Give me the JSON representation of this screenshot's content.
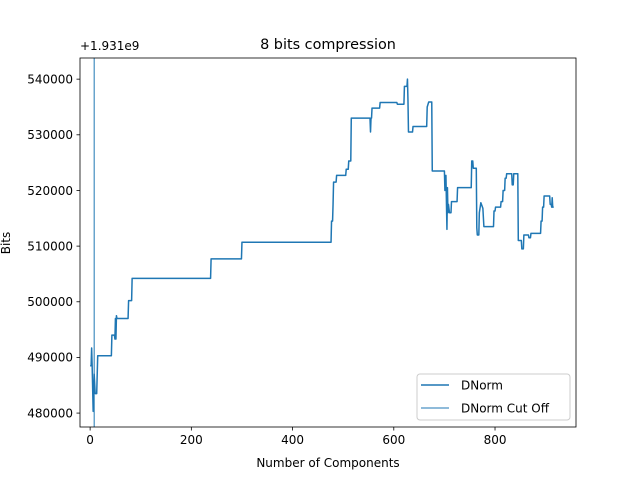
{
  "chart_data": {
    "type": "line",
    "title": "8 bits compression",
    "xlabel": "Number of Components",
    "ylabel": "Bits",
    "offset_text": "+1.931e9",
    "xlim": [
      -20,
      960
    ],
    "ylim": [
      477500,
      543800
    ],
    "x_ticks": [
      0,
      200,
      400,
      600,
      800
    ],
    "y_ticks": [
      480000,
      490000,
      500000,
      510000,
      520000,
      530000,
      540000
    ],
    "grid": false,
    "legend_position": "lower right",
    "series": [
      {
        "name": "DNorm",
        "kind": "line",
        "color": "#1f77b4",
        "points": [
          [
            0,
            488500
          ],
          [
            2,
            488500
          ],
          [
            3,
            491700
          ],
          [
            4,
            488500
          ],
          [
            6,
            480300
          ],
          [
            8,
            487000
          ],
          [
            10,
            483500
          ],
          [
            13,
            483500
          ],
          [
            15,
            490300
          ],
          [
            42,
            490300
          ],
          [
            43,
            494000
          ],
          [
            48,
            494000
          ],
          [
            49,
            493300
          ],
          [
            50,
            497000
          ],
          [
            51,
            493300
          ],
          [
            52,
            497500
          ],
          [
            53,
            497000
          ],
          [
            75,
            497000
          ],
          [
            76,
            500200
          ],
          [
            82,
            500200
          ],
          [
            83,
            504200
          ],
          [
            238,
            504200
          ],
          [
            239,
            507700
          ],
          [
            299,
            507700
          ],
          [
            300,
            510700
          ],
          [
            476,
            510700
          ],
          [
            477,
            514500
          ],
          [
            479,
            514500
          ],
          [
            480,
            517500
          ],
          [
            481,
            521500
          ],
          [
            486,
            521500
          ],
          [
            487,
            522700
          ],
          [
            505,
            522700
          ],
          [
            506,
            523800
          ],
          [
            510,
            523800
          ],
          [
            511,
            525300
          ],
          [
            515,
            525300
          ],
          [
            516,
            533000
          ],
          [
            553,
            533000
          ],
          [
            554,
            530500
          ],
          [
            555,
            533000
          ],
          [
            556,
            533000
          ],
          [
            557,
            534800
          ],
          [
            572,
            534800
          ],
          [
            573,
            535800
          ],
          [
            606,
            535800
          ],
          [
            607,
            535500
          ],
          [
            620,
            535500
          ],
          [
            621,
            538700
          ],
          [
            626,
            538700
          ],
          [
            627,
            540000
          ],
          [
            628,
            536200
          ],
          [
            629,
            530500
          ],
          [
            637,
            530500
          ],
          [
            638,
            531500
          ],
          [
            665,
            531500
          ],
          [
            666,
            535000
          ],
          [
            669,
            535900
          ],
          [
            675,
            535900
          ],
          [
            676,
            523500
          ],
          [
            700,
            523500
          ],
          [
            701,
            520000
          ],
          [
            703,
            522700
          ],
          [
            705,
            513000
          ],
          [
            706,
            520500
          ],
          [
            707,
            516000
          ],
          [
            708,
            517500
          ],
          [
            710,
            516000
          ],
          [
            713,
            516000
          ],
          [
            714,
            518000
          ],
          [
            725,
            518000
          ],
          [
            726,
            520500
          ],
          [
            753,
            520500
          ],
          [
            754,
            525300
          ],
          [
            756,
            525300
          ],
          [
            757,
            524000
          ],
          [
            763,
            524000
          ],
          [
            764,
            513300
          ],
          [
            765,
            512000
          ],
          [
            768,
            512000
          ],
          [
            769,
            516000
          ],
          [
            772,
            517800
          ],
          [
            776,
            516800
          ],
          [
            778,
            513500
          ],
          [
            797,
            513500
          ],
          [
            798,
            516300
          ],
          [
            800,
            516300
          ],
          [
            801,
            517000
          ],
          [
            811,
            517000
          ],
          [
            812,
            518000
          ],
          [
            815,
            518000
          ],
          [
            816,
            520000
          ],
          [
            819,
            520000
          ],
          [
            820,
            522200
          ],
          [
            822,
            522200
          ],
          [
            823,
            523000
          ],
          [
            833,
            523000
          ],
          [
            834,
            521000
          ],
          [
            836,
            521000
          ],
          [
            837,
            523000
          ],
          [
            845,
            523000
          ],
          [
            846,
            511000
          ],
          [
            852,
            511000
          ],
          [
            853,
            509500
          ],
          [
            856,
            509500
          ],
          [
            857,
            512000
          ],
          [
            866,
            512000
          ],
          [
            867,
            511500
          ],
          [
            870,
            511500
          ],
          [
            871,
            512300
          ],
          [
            890,
            512300
          ],
          [
            891,
            514500
          ],
          [
            893,
            514500
          ],
          [
            894,
            517000
          ],
          [
            896,
            517000
          ],
          [
            897,
            519000
          ],
          [
            908,
            519000
          ],
          [
            909,
            517500
          ],
          [
            911,
            517500
          ],
          [
            912,
            517000
          ],
          [
            913,
            518700
          ],
          [
            914,
            517000
          ],
          [
            916,
            517000
          ]
        ]
      },
      {
        "name": "DNorm Cut Off",
        "kind": "vline",
        "color": "#1f77b4",
        "x": 8
      }
    ]
  }
}
